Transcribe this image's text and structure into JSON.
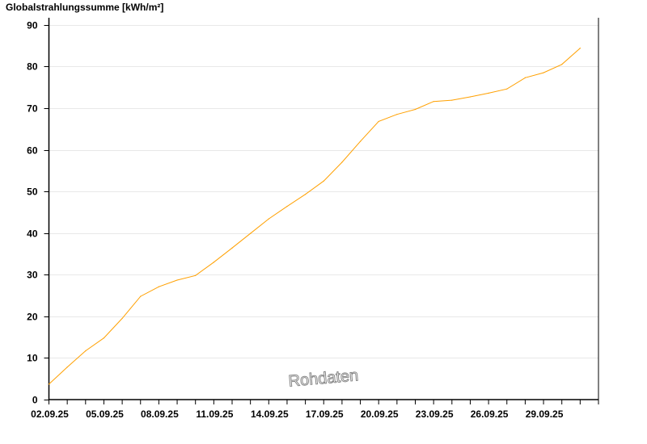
{
  "chart_data": {
    "type": "line",
    "title": "Globalstrahlungssumme [kWh/m²]",
    "watermark": "Rohdaten",
    "x": [
      "02.09.25",
      "03.09.25",
      "04.09.25",
      "05.09.25",
      "06.09.25",
      "07.09.25",
      "08.09.25",
      "09.09.25",
      "10.09.25",
      "11.09.25",
      "12.09.25",
      "13.09.25",
      "14.09.25",
      "15.09.25",
      "16.09.25",
      "17.09.25",
      "18.09.25",
      "19.09.25",
      "20.09.25",
      "21.09.25",
      "22.09.25",
      "23.09.25",
      "24.09.25",
      "25.09.25",
      "26.09.25",
      "27.09.25",
      "28.09.25",
      "29.09.25",
      "30.09.25",
      "01.10.25"
    ],
    "series": [
      {
        "values": [
          3.7,
          7.8,
          11.7,
          14.8,
          19.5,
          24.8,
          27.1,
          28.7,
          29.8,
          33.0,
          36.4,
          39.9,
          43.4,
          46.4,
          49.3,
          52.5,
          57.0,
          62.0,
          66.8,
          68.5,
          69.7,
          71.6,
          71.9,
          72.7,
          73.6,
          74.6,
          77.3,
          78.5,
          80.5,
          84.4
        ],
        "color": "#ffa000"
      }
    ],
    "x_tick_labels": [
      "02.09.25",
      "05.09.25",
      "08.09.25",
      "11.09.25",
      "14.09.25",
      "17.09.25",
      "20.09.25",
      "23.09.25",
      "26.09.25",
      "29.09.25"
    ],
    "y_ticks": [
      0,
      10,
      20,
      30,
      40,
      50,
      60,
      70,
      80,
      90
    ],
    "ylim": [
      0,
      91.7
    ],
    "x_range": [
      "02.09.25",
      "02.10.25"
    ],
    "grid": true,
    "grid_color": "#e8e8e8"
  }
}
